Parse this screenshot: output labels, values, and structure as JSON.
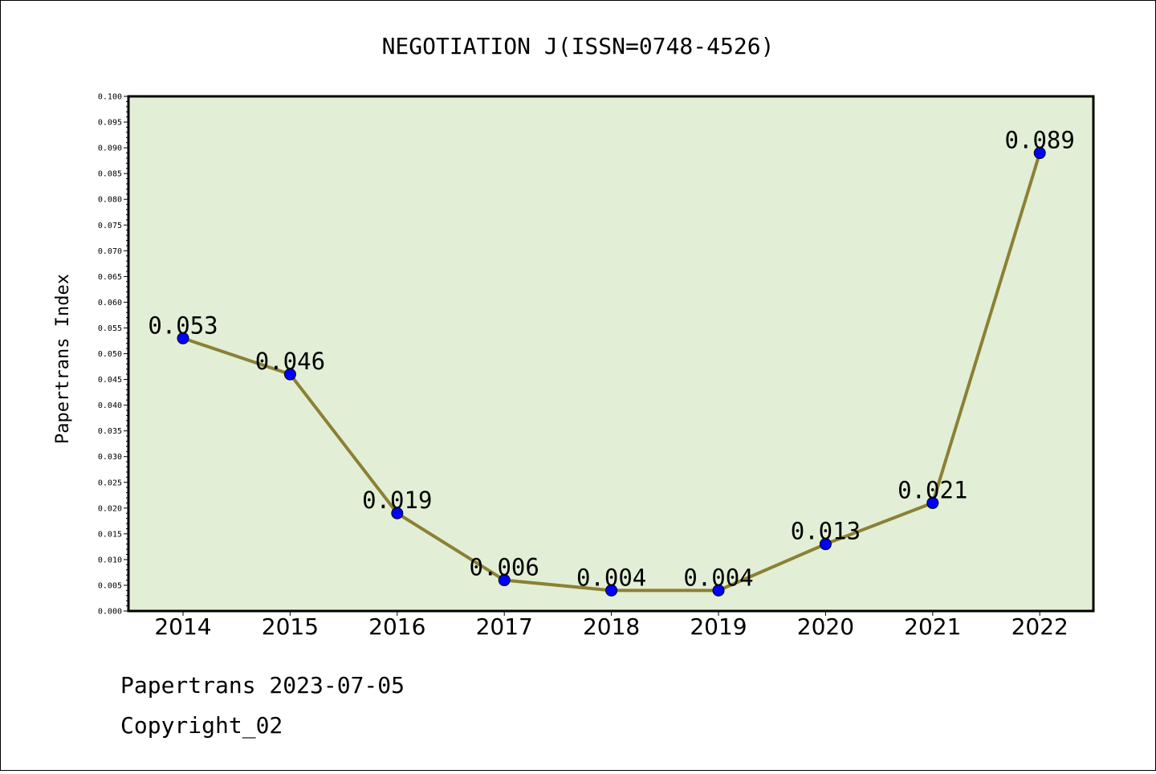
{
  "chart_data": {
    "type": "line",
    "title": "NEGOTIATION J(ISSN=0748-4526)",
    "xlabel": "",
    "ylabel": "Papertrans Index",
    "categories": [
      "2014",
      "2015",
      "2016",
      "2017",
      "2018",
      "2019",
      "2020",
      "2021",
      "2022"
    ],
    "series": [
      {
        "values": [
          0.053,
          0.046,
          0.019,
          0.006,
          0.004,
          0.004,
          0.013,
          0.021,
          0.089
        ],
        "data_labels": [
          "0.053",
          "0.046",
          "0.019",
          "0.006",
          "0.004",
          "0.004",
          "0.013",
          "0.021",
          "0.089"
        ]
      }
    ],
    "ylim": [
      0,
      0.1
    ],
    "ytick_step": 0.005,
    "ytick_labels": [
      "0.000",
      "0.005",
      "0.010",
      "0.015",
      "0.020",
      "0.025",
      "0.030",
      "0.035",
      "0.040",
      "0.045",
      "0.050",
      "0.055",
      "0.060",
      "0.065",
      "0.070",
      "0.075",
      "0.080",
      "0.085",
      "0.090",
      "0.095",
      "0.100"
    ],
    "grid": false,
    "legend": "none",
    "colors": {
      "plot_background": "#e2efd6",
      "line": "#8c8034",
      "marker": "#0000ff"
    }
  },
  "footer": {
    "line1": "Papertrans 2023-07-05",
    "line2": "Copyright_02"
  }
}
